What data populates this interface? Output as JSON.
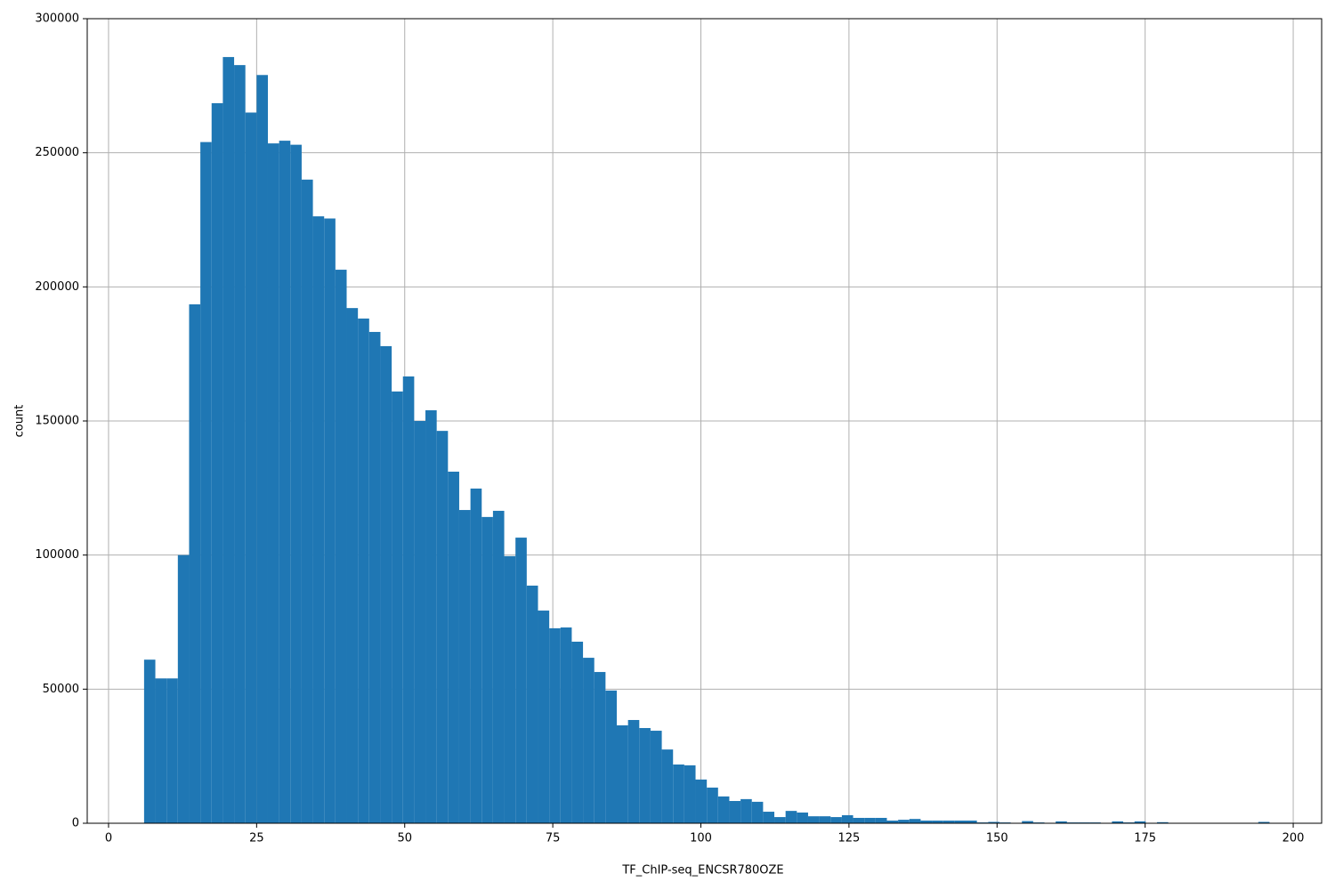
{
  "chart_data": {
    "type": "histogram",
    "xlabel": "TF_ChIP-seq_ENCSR780OZE",
    "ylabel": "count",
    "color": "#1f77b4",
    "grid": true,
    "xlim": [
      -3.6,
      204.8
    ],
    "ylim": [
      0,
      300000
    ],
    "xticks": [
      0,
      25,
      50,
      75,
      100,
      125,
      150,
      175,
      200
    ],
    "yticks": [
      0,
      50000,
      100000,
      150000,
      200000,
      250000,
      300000
    ],
    "bins": [
      6,
      7.9,
      9.8,
      11.7,
      13.6,
      15.5,
      17.4,
      19.3,
      21.2,
      23.1,
      25,
      26.9,
      28.8,
      30.7,
      32.6,
      34.5,
      36.4,
      38.3,
      40.2,
      42.1,
      44,
      45.9,
      47.8,
      49.7,
      51.6,
      53.5,
      55.4,
      57.3,
      59.2,
      61.1,
      63,
      64.9,
      66.8,
      68.7,
      70.6,
      72.5,
      74.4,
      76.3,
      78.2,
      80.1,
      82,
      83.9,
      85.8,
      87.7,
      89.6,
      91.5,
      93.4,
      95.3,
      97.2,
      99.1,
      101,
      102.9,
      104.8,
      106.7,
      108.6,
      110.5,
      112.4,
      114.3,
      116.2,
      118.1,
      120,
      121.9,
      123.8,
      125.7,
      127.6,
      129.5,
      131.4,
      133.3,
      135.2,
      137.1,
      139,
      140.9,
      142.8,
      144.7,
      146.6,
      148.5,
      150.4,
      152.3,
      154.2,
      156.1,
      158,
      159.9,
      161.8,
      163.7,
      165.6,
      167.5,
      169.4,
      171.3,
      173.2,
      175.1,
      177,
      178.9,
      180.8,
      182.7,
      184.6,
      186.5,
      188.4,
      190.3,
      192.2,
      194.1,
      196
    ],
    "counts": [
      61000,
      54000,
      54000,
      100000,
      193500,
      254000,
      268500,
      285700,
      282700,
      265000,
      279000,
      253500,
      254500,
      253000,
      240000,
      226300,
      225500,
      206400,
      192100,
      188200,
      183200,
      177900,
      161000,
      166600,
      150000,
      154000,
      146300,
      131100,
      116800,
      124800,
      114200,
      116500,
      99600,
      106500,
      88600,
      79300,
      72700,
      73000,
      67700,
      61700,
      56400,
      49500,
      36500,
      38500,
      35500,
      34500,
      27500,
      21900,
      21600,
      16300,
      13300,
      10000,
      8300,
      9000,
      8000,
      4300,
      2300,
      4600,
      4000,
      2600,
      2600,
      2300,
      3000,
      2000,
      2000,
      2000,
      1000,
      1300,
      1600,
      1000,
      1000,
      1000,
      1000,
      1000,
      300,
      500,
      300,
      0,
      800,
      300,
      0,
      700,
      300,
      300,
      300,
      0,
      700,
      300,
      700,
      0,
      400,
      0,
      0,
      0,
      0,
      0,
      0,
      0,
      0,
      500
    ]
  }
}
